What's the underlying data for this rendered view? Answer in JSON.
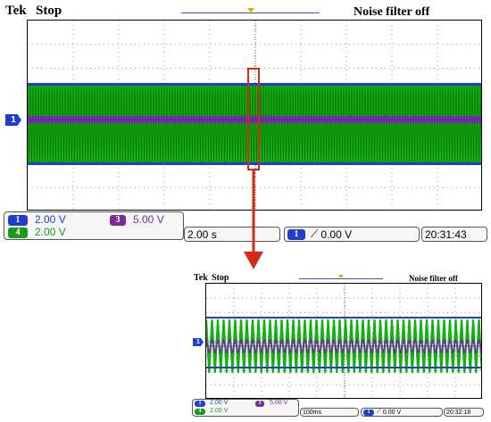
{
  "top": {
    "brand": "Tek",
    "run_state": "Stop",
    "filter": "Noise filter off",
    "ch1_marker": "1",
    "ch1": {
      "num": "1",
      "scale": "2.00 V"
    },
    "ch3": {
      "num": "3",
      "scale": "5.00 V"
    },
    "ch4": {
      "num": "4",
      "scale": "2.00 V"
    },
    "timebase": "2.00 s",
    "trigger": {
      "num": "1",
      "level": "0.00 V"
    },
    "clock": "20:31:43"
  },
  "bottom": {
    "brand": "Tek",
    "run_state": "Stop",
    "filter": "Noise filter off",
    "ch1_marker": "1",
    "ch1": {
      "num": "1",
      "scale": "2.00 V"
    },
    "ch3": {
      "num": "3",
      "scale": "5.00 V"
    },
    "ch4": {
      "num": "4",
      "scale": "2.00 V"
    },
    "timebase": "100ms",
    "trigger": {
      "num": "1",
      "level": "0.00 V"
    },
    "clock": "20:32:18"
  },
  "colors": {
    "ch1": "#1f3fcf",
    "ch3": "#7b2a9a",
    "ch4": "#1a9a1a",
    "trigger_marker": "#e6a800",
    "zoom_highlight": "#d42a1a"
  }
}
